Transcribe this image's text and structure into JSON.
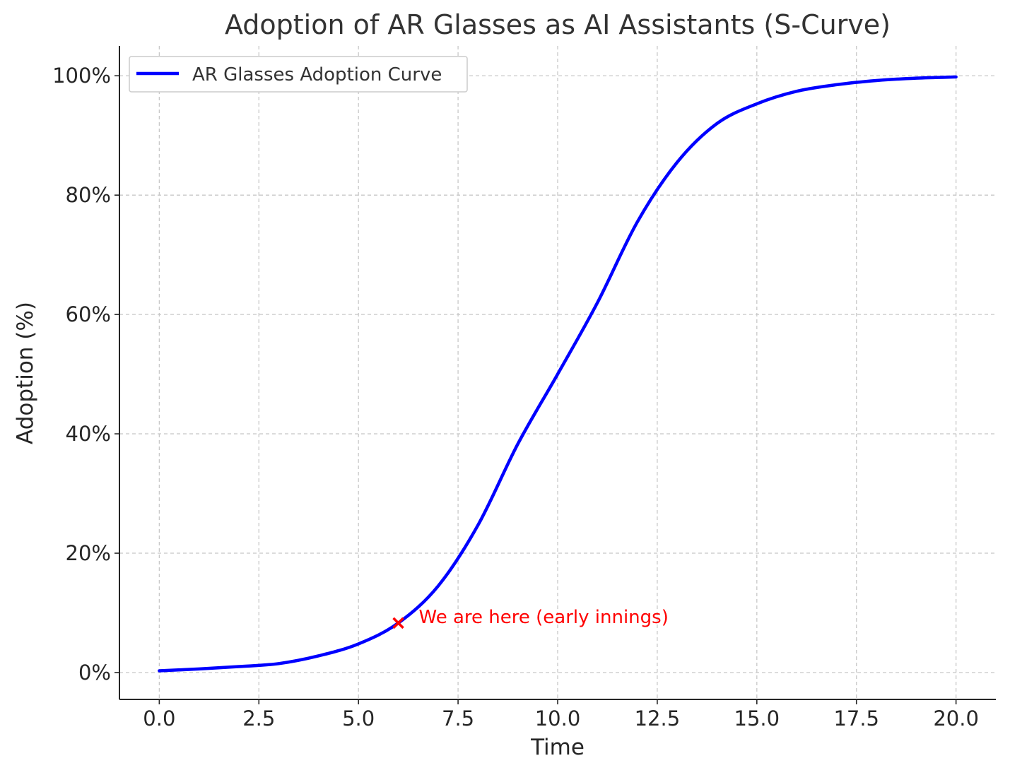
{
  "chart_data": {
    "type": "line",
    "title": "Adoption of AR Glasses as AI Assistants (S-Curve)",
    "xlabel": "Time",
    "ylabel": "Adoption (%)",
    "xlim": [
      -1,
      21
    ],
    "ylim": [
      -4.5,
      105
    ],
    "xticks": [
      0,
      2.5,
      5,
      7.5,
      10,
      12.5,
      15,
      17.5,
      20
    ],
    "xtick_labels": [
      "0.0",
      "2.5",
      "5.0",
      "7.5",
      "10.0",
      "12.5",
      "15.0",
      "17.5",
      "20.0"
    ],
    "yticks": [
      0,
      20,
      40,
      60,
      80,
      100
    ],
    "ytick_labels": [
      "0%",
      "20%",
      "40%",
      "60%",
      "80%",
      "100%"
    ],
    "grid": true,
    "legend_position": "top-left",
    "series": [
      {
        "name": "AR Glasses Adoption Curve",
        "color": "#0000ff",
        "x": [
          0,
          1,
          2,
          3,
          4,
          5,
          6,
          7,
          8,
          9,
          10,
          11,
          12,
          13,
          14,
          15,
          16,
          17,
          18,
          19,
          20
        ],
        "y": [
          0.3,
          0.6,
          1.0,
          1.5,
          2.8,
          4.8,
          8.3,
          14.5,
          24.7,
          38.3,
          50.0,
          62.0,
          75.5,
          85.5,
          92.0,
          95.3,
          97.4,
          98.5,
          99.2,
          99.6,
          99.8
        ]
      }
    ],
    "annotations": [
      {
        "text": "We are here (early innings)",
        "x": 6,
        "y": 8.3,
        "marker": "x",
        "color": "#ff0000"
      }
    ]
  }
}
